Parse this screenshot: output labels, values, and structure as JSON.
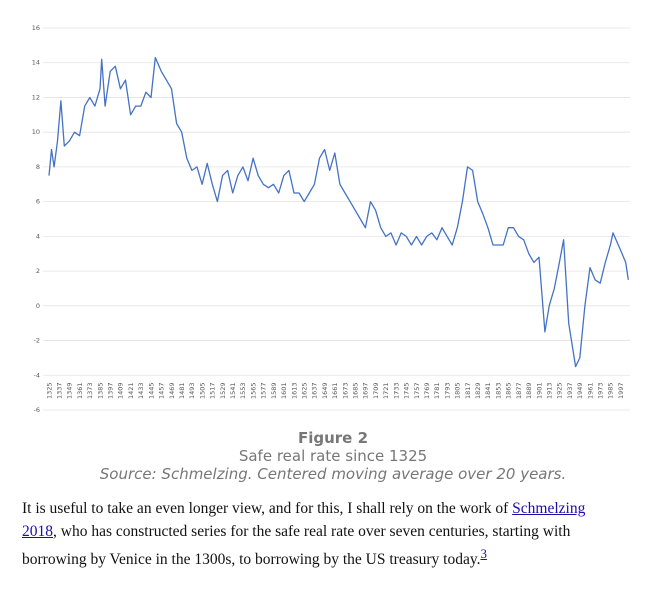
{
  "chart_data": {
    "type": "line",
    "xlim": [
      1318,
      2008
    ],
    "ylim": [
      -6,
      16
    ],
    "yticks": [
      -6,
      -4,
      -2,
      0,
      2,
      4,
      6,
      8,
      10,
      12,
      14,
      16
    ],
    "grid": true,
    "xticks": [
      1325,
      1337,
      1349,
      1361,
      1373,
      1385,
      1397,
      1409,
      1421,
      1433,
      1445,
      1457,
      1469,
      1481,
      1493,
      1505,
      1517,
      1529,
      1541,
      1553,
      1565,
      1577,
      1589,
      1601,
      1613,
      1625,
      1637,
      1649,
      1661,
      1673,
      1685,
      1697,
      1709,
      1721,
      1733,
      1745,
      1757,
      1769,
      1781,
      1793,
      1805,
      1817,
      1829,
      1841,
      1853,
      1865,
      1877,
      1889,
      1901,
      1913,
      1925,
      1937,
      1949,
      1961,
      1973,
      1985,
      1997
    ],
    "x": [
      1325,
      1328,
      1331,
      1335,
      1339,
      1343,
      1349,
      1355,
      1361,
      1367,
      1373,
      1379,
      1385,
      1387,
      1391,
      1397,
      1403,
      1409,
      1415,
      1421,
      1427,
      1433,
      1439,
      1445,
      1450,
      1457,
      1463,
      1469,
      1475,
      1481,
      1487,
      1493,
      1499,
      1505,
      1511,
      1517,
      1523,
      1529,
      1535,
      1541,
      1547,
      1553,
      1559,
      1565,
      1571,
      1577,
      1583,
      1589,
      1595,
      1601,
      1607,
      1613,
      1619,
      1625,
      1631,
      1637,
      1643,
      1649,
      1655,
      1661,
      1667,
      1673,
      1679,
      1685,
      1691,
      1697,
      1703,
      1709,
      1715,
      1721,
      1727,
      1733,
      1739,
      1745,
      1751,
      1757,
      1763,
      1769,
      1775,
      1781,
      1787,
      1793,
      1799,
      1805,
      1811,
      1817,
      1823,
      1829,
      1835,
      1841,
      1847,
      1853,
      1859,
      1865,
      1871,
      1877,
      1883,
      1889,
      1895,
      1901,
      1908,
      1913,
      1919,
      1925,
      1930,
      1936,
      1944,
      1949,
      1955,
      1961,
      1967,
      1973,
      1979,
      1985,
      1988,
      1997,
      2003,
      2006
    ],
    "series": [
      {
        "color": "#4472c4",
        "values": [
          7.5,
          9.0,
          8.0,
          9.5,
          11.8,
          9.2,
          9.5,
          10.0,
          9.8,
          11.5,
          12.0,
          11.5,
          12.5,
          14.2,
          11.5,
          13.5,
          13.8,
          12.5,
          13.0,
          11.0,
          11.5,
          11.5,
          12.3,
          12.0,
          14.3,
          13.5,
          13.0,
          12.5,
          10.5,
          10.0,
          8.5,
          7.8,
          8.0,
          7.0,
          8.2,
          7.0,
          6.0,
          7.5,
          7.8,
          6.5,
          7.5,
          8.0,
          7.2,
          8.5,
          7.5,
          7.0,
          6.8,
          7.0,
          6.5,
          7.5,
          7.8,
          6.5,
          6.5,
          6.0,
          6.5,
          7.0,
          8.5,
          9.0,
          7.8,
          8.8,
          7.0,
          6.5,
          6.0,
          5.5,
          5.0,
          4.5,
          6.0,
          5.5,
          4.5,
          4.0,
          4.2,
          3.5,
          4.2,
          4.0,
          3.5,
          4.0,
          3.5,
          4.0,
          4.2,
          3.8,
          4.5,
          4.0,
          3.5,
          4.5,
          6.0,
          8.0,
          7.8,
          6.0,
          5.3,
          4.5,
          3.5,
          3.5,
          3.5,
          4.5,
          4.5,
          4.0,
          3.8,
          3.0,
          2.5,
          2.8,
          -1.5,
          0,
          1.0,
          2.5,
          3.8,
          -1.0,
          -3.5,
          -3.0,
          0,
          2.2,
          1.5,
          1.3,
          2.5,
          3.5,
          4.2,
          3.2,
          2.5,
          1.5
        ]
      }
    ]
  },
  "figure": {
    "label": "Figure 2",
    "caption": "Safe real rate since 1325",
    "source": "Source: Schmelzing. Centered moving average over 20 years."
  },
  "paragraph": {
    "text_before": "It is useful to take an even longer view, and for this, I shall rely on the work of ",
    "link": "Schmelzing 2018",
    "text_after": ", who has constructed series for the safe real rate over seven centuries, starting with borrowing by Venice in the 1300s, to borrowing by the US treasury today.",
    "footnote": "3"
  }
}
